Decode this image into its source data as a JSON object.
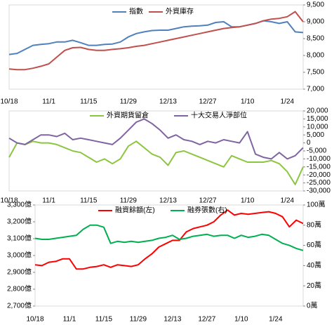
{
  "chart_data": [
    {
      "type": "line",
      "y_axis_side": "right",
      "categories": [
        "10/18",
        null,
        null,
        null,
        null,
        "11/1",
        null,
        null,
        null,
        null,
        "11/15",
        null,
        null,
        null,
        null,
        "11/29",
        null,
        null,
        null,
        null,
        "12/13",
        null,
        null,
        null,
        null,
        "12/27",
        null,
        null,
        null,
        null,
        "1/10",
        null,
        null,
        null,
        null,
        "1/24",
        null,
        null
      ],
      "ylim": [
        7000,
        9500
      ],
      "yticks": [
        {
          "value": 7000,
          "label": "7,000"
        },
        {
          "value": 7500,
          "label": "7,500"
        },
        {
          "value": 8000,
          "label": "8,000"
        },
        {
          "value": 8500,
          "label": "8,500"
        },
        {
          "value": 9000,
          "label": "9,000"
        },
        {
          "value": 9500,
          "label": "9,500"
        }
      ],
      "series": [
        {
          "name": "指數",
          "color": "#4f81bd",
          "values": [
            8030,
            8060,
            8180,
            8300,
            8330,
            8350,
            8400,
            8400,
            8450,
            8380,
            8300,
            8300,
            8330,
            8340,
            8400,
            8550,
            8650,
            8700,
            8740,
            8750,
            8750,
            8800,
            8850,
            8870,
            8880,
            8900,
            8980,
            9000,
            8850,
            8850,
            8900,
            8950,
            9030,
            9000,
            8950,
            9000,
            8700,
            8680
          ]
        },
        {
          "name": "外資庫存",
          "color": "#c0504d",
          "values": [
            7600,
            7580,
            7580,
            7620,
            7680,
            7750,
            7950,
            8150,
            8230,
            8240,
            8180,
            8150,
            8150,
            8180,
            8200,
            8230,
            8270,
            8300,
            8350,
            8400,
            8450,
            8500,
            8550,
            8600,
            8650,
            8700,
            8750,
            8800,
            8830,
            8850,
            8900,
            8950,
            9030,
            9080,
            9100,
            9150,
            9300,
            9000
          ]
        }
      ]
    },
    {
      "type": "line",
      "y_axis_side": "right",
      "negative_tick_color": "#ff0000",
      "categories": [
        "10/18",
        null,
        null,
        null,
        null,
        "11/1",
        null,
        null,
        null,
        null,
        "11/15",
        null,
        null,
        null,
        null,
        "11/29",
        null,
        null,
        null,
        null,
        "12/13",
        null,
        null,
        null,
        null,
        "12/27",
        null,
        null,
        null,
        null,
        "1/10",
        null,
        null,
        null,
        null,
        "1/24",
        null,
        null
      ],
      "ylim": [
        -30000,
        20000
      ],
      "yticks": [
        {
          "value": -30000,
          "label": "-30,000"
        },
        {
          "value": -25000,
          "label": "-25,000"
        },
        {
          "value": -20000,
          "label": "-20,000"
        },
        {
          "value": -15000,
          "label": "-15,000"
        },
        {
          "value": -10000,
          "label": "-10,000"
        },
        {
          "value": -5000,
          "label": "-5,000"
        },
        0,
        {
          "value": 5000,
          "label": "5,000"
        },
        {
          "value": 10000,
          "label": "10,000"
        },
        {
          "value": 15000,
          "label": "15,000"
        },
        {
          "value": 20000,
          "label": "20,000"
        }
      ],
      "series": [
        {
          "name": "外資期貨留倉",
          "color": "#8cc63f",
          "values": [
            -9000,
            0,
            -1000,
            1000,
            0,
            0,
            -1000,
            -3000,
            -5000,
            -6000,
            -9000,
            -12000,
            -10000,
            -13000,
            -10000,
            -2000,
            1000,
            -3000,
            -7000,
            -9000,
            -14000,
            -6000,
            -5000,
            -7000,
            -9000,
            -11000,
            -13000,
            -15000,
            -8000,
            -10000,
            -12000,
            -12000,
            -12000,
            -11000,
            -13000,
            -18000,
            -26000,
            -15000
          ]
        },
        {
          "name": "十大交易人淨部位",
          "color": "#8064a2",
          "values": [
            3000,
            0,
            -1000,
            2000,
            5000,
            5000,
            4000,
            6000,
            2000,
            3000,
            2000,
            1000,
            0,
            -1000,
            3000,
            8000,
            13000,
            15000,
            12000,
            8000,
            3000,
            5000,
            2000,
            1000,
            -1000,
            1000,
            0,
            2000,
            1000,
            0,
            7000,
            -7000,
            -9000,
            -10000,
            -6000,
            -10000,
            -8000,
            -3000
          ]
        }
      ]
    },
    {
      "type": "line",
      "y_axis_side": "left",
      "categories": [
        "10/18",
        null,
        null,
        null,
        null,
        "11/1",
        null,
        null,
        null,
        null,
        "11/15",
        null,
        null,
        null,
        null,
        "11/29",
        null,
        null,
        null,
        null,
        "12/13",
        null,
        null,
        null,
        null,
        "12/27",
        null,
        null,
        null,
        null,
        "1/10",
        null,
        null,
        null,
        null,
        "1/24",
        null,
        null,
        null,
        null
      ],
      "ylim": [
        2700,
        3300
      ],
      "yticks": [
        {
          "value": 2700,
          "label": "2,700億"
        },
        {
          "value": 2800,
          "label": "2,800億"
        },
        {
          "value": 2900,
          "label": "2,900億"
        },
        {
          "value": 3000,
          "label": "3,000億"
        },
        {
          "value": 3100,
          "label": "3,100億"
        },
        {
          "value": 3200,
          "label": "3,200億"
        },
        {
          "value": 3300,
          "label": "3,300億"
        }
      ],
      "y2lim": [
        0,
        100
      ],
      "y2ticks": [
        {
          "value": 0,
          "label": "0萬"
        },
        {
          "value": 20,
          "label": "20萬"
        },
        {
          "value": 40,
          "label": "40萬"
        },
        {
          "value": 60,
          "label": "60萬"
        },
        {
          "value": 80,
          "label": "80萬"
        },
        {
          "value": 100,
          "label": "100萬"
        }
      ],
      "series": [
        {
          "name": "融資餘額(左)",
          "color": "#ff0000",
          "values": [
            2945,
            2940,
            2960,
            2965,
            2980,
            2980,
            2920,
            2920,
            2930,
            2935,
            2945,
            2930,
            2945,
            2940,
            2935,
            2945,
            2980,
            3010,
            3050,
            3070,
            3090,
            3090,
            3140,
            3160,
            3170,
            3180,
            3200,
            3240,
            3270,
            3240,
            3250,
            3245,
            3250,
            3255,
            3260,
            3250,
            3230,
            3170,
            3210,
            3190
          ]
        },
        {
          "name": "融券張數(右)",
          "color": "#00b050",
          "axis": "y2",
          "values": [
            67,
            66,
            66,
            67,
            68,
            69,
            70,
            76,
            80,
            80,
            78,
            62,
            64,
            63,
            64,
            63,
            64,
            65,
            67,
            68,
            70,
            66,
            67,
            69,
            70,
            71,
            69,
            70,
            70,
            67,
            70,
            68,
            69,
            71,
            70,
            66,
            62,
            60,
            57,
            55
          ]
        }
      ]
    }
  ]
}
